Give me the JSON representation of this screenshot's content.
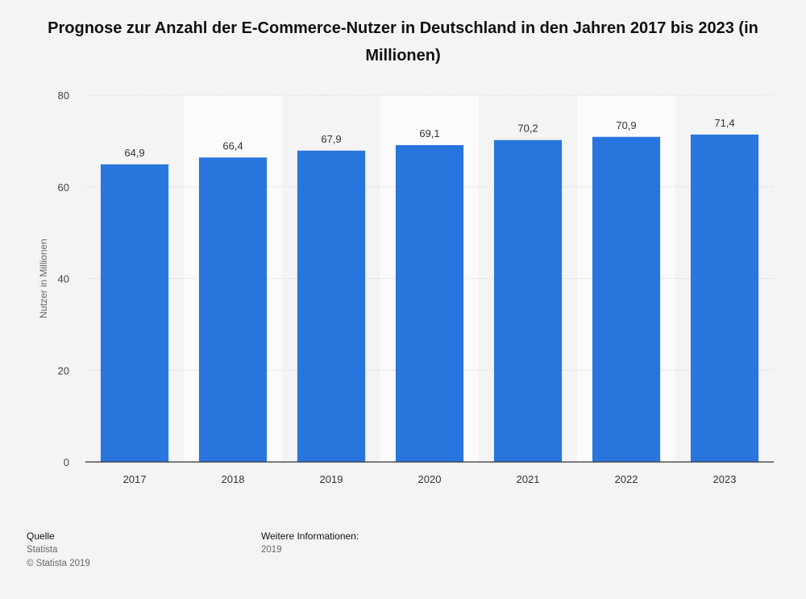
{
  "title": "Prognose zur Anzahl der E-Commerce-Nutzer in Deutschland in den Jahren 2017 bis 2023 (in Millionen)",
  "chart_data": {
    "type": "bar",
    "categories": [
      "2017",
      "2018",
      "2019",
      "2020",
      "2021",
      "2022",
      "2023"
    ],
    "values": [
      64.9,
      66.4,
      67.9,
      69.1,
      70.2,
      70.9,
      71.4
    ],
    "value_labels": [
      "64,9",
      "66,4",
      "67,9",
      "69,1",
      "70,2",
      "70,9",
      "71,4"
    ],
    "title": "Prognose zur Anzahl der E-Commerce-Nutzer in Deutschland in den Jahren 2017 bis 2023 (in Millionen)",
    "xlabel": "",
    "ylabel": "Nutzer in Millionen",
    "ylim": [
      0,
      80
    ],
    "yticks": [
      0,
      20,
      40,
      60,
      80
    ],
    "grid": true,
    "bar_color": "#2876dd"
  },
  "footer": {
    "source_heading": "Quelle",
    "source_name": "Statista",
    "copyright": "© Statista 2019",
    "info_heading": "Weitere Informationen:",
    "info_value": "2019"
  }
}
